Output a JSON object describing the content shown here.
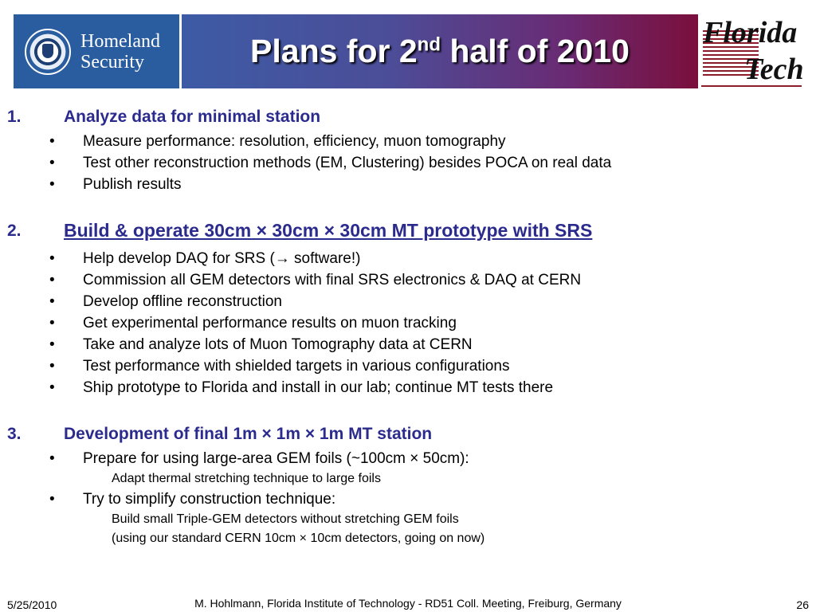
{
  "header": {
    "left_logo": {
      "line1": "Homeland",
      "line2": "Security"
    },
    "title_prefix": "Plans for 2",
    "title_sup": "nd",
    "title_suffix": " half of 2010",
    "right_logo": {
      "line1": "Florida",
      "line2": "Tech"
    }
  },
  "sections": [
    {
      "number": "1.",
      "title": "Analyze data for minimal station",
      "bullets": [
        "Measure performance: resolution, efficiency, muon tomography",
        "Test other reconstruction methods (EM, Clustering) besides POCA on real data",
        "Publish results"
      ]
    },
    {
      "number": "2.",
      "title": "Build & operate 30cm × 30cm × 30cm MT prototype with SRS",
      "bullets": [
        "Help develop DAQ for SRS (→ software!)",
        "Commission all GEM detectors with final SRS electronics & DAQ at CERN",
        "Develop offline reconstruction",
        "Get experimental performance results on muon tracking",
        "Take and analyze lots of Muon Tomography data at CERN",
        "Test performance with shielded targets in various configurations",
        "Ship prototype to Florida and install in our lab; continue MT tests there"
      ]
    },
    {
      "number": "3.",
      "title": "Development of final 1m × 1m × 1m MT station",
      "bullets": [
        "Prepare for using large-area GEM foils (~100cm × 50cm):",
        "Try to simplify construction technique:"
      ],
      "subitems": [
        "Adapt thermal stretching technique to large foils",
        "Build small Triple-GEM detectors without stretching GEM foils",
        "(using our standard CERN 10cm × 10cm detectors, going on now)"
      ]
    }
  ],
  "bullet_glyph": "•",
  "footer": {
    "date": "5/25/2010",
    "credit": "M. Hohlmann, Florida Institute of Technology - RD51 Coll. Meeting, Freiburg, Germany",
    "page": "26"
  }
}
